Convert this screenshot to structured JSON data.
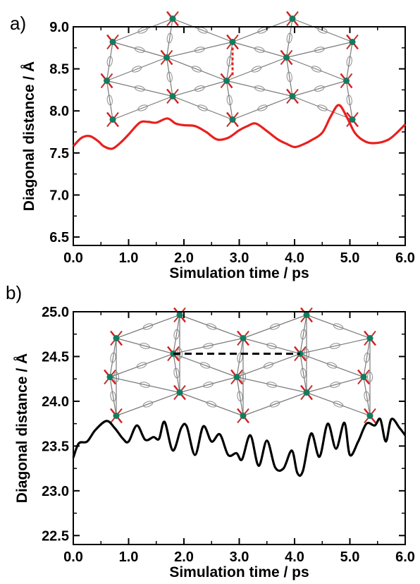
{
  "chart_data": [
    {
      "panel_label": "a)",
      "type": "line",
      "xlabel": "Simulation time / ps",
      "ylabel": "Diagonal distance / Å",
      "xlim": [
        0.0,
        6.0
      ],
      "ylim": [
        6.4,
        9.0
      ],
      "xticks": [
        "0.0",
        "1.0",
        "2.0",
        "3.0",
        "4.0",
        "5.0",
        "6.0"
      ],
      "yticks": [
        "6.5",
        "7.0",
        "7.5",
        "8.0",
        "8.5",
        "9.0"
      ],
      "series": [
        {
          "color": "#e8201e",
          "x": [
            0.0,
            0.15,
            0.3,
            0.45,
            0.55,
            0.7,
            0.85,
            1.0,
            1.2,
            1.35,
            1.5,
            1.7,
            1.85,
            2.0,
            2.2,
            2.4,
            2.6,
            2.8,
            3.0,
            3.15,
            3.3,
            3.5,
            3.7,
            3.85,
            4.0,
            4.15,
            4.3,
            4.5,
            4.65,
            4.8,
            4.95,
            5.1,
            5.3,
            5.5,
            5.7,
            5.85,
            6.0
          ],
          "y": [
            7.58,
            7.68,
            7.7,
            7.64,
            7.58,
            7.55,
            7.62,
            7.72,
            7.86,
            7.87,
            7.86,
            7.91,
            7.85,
            7.83,
            7.82,
            7.75,
            7.66,
            7.68,
            7.77,
            7.82,
            7.85,
            7.76,
            7.66,
            7.61,
            7.57,
            7.6,
            7.65,
            7.74,
            7.93,
            8.07,
            7.92,
            7.73,
            7.63,
            7.62,
            7.66,
            7.74,
            7.84
          ]
        }
      ],
      "inset_marker_color": "#e8201e"
    },
    {
      "panel_label": "b)",
      "type": "line",
      "xlabel": "Simulation time / ps",
      "ylabel": "Diagonal distance / Å",
      "xlim": [
        0.0,
        6.0
      ],
      "ylim": [
        22.4,
        25.0
      ],
      "xticks": [
        "0.0",
        "1.0",
        "2.0",
        "3.0",
        "4.0",
        "5.0",
        "6.0"
      ],
      "yticks": [
        "22.5",
        "23.0",
        "23.5",
        "24.0",
        "24.5",
        "25.0"
      ],
      "series": [
        {
          "color": "#000000",
          "x": [
            0.0,
            0.1,
            0.25,
            0.4,
            0.6,
            0.75,
            0.9,
            1.0,
            1.15,
            1.3,
            1.45,
            1.55,
            1.65,
            1.8,
            1.95,
            2.05,
            2.2,
            2.35,
            2.5,
            2.65,
            2.8,
            2.95,
            3.05,
            3.2,
            3.35,
            3.5,
            3.65,
            3.8,
            3.95,
            4.05,
            4.15,
            4.3,
            4.45,
            4.6,
            4.75,
            4.9,
            5.0,
            5.15,
            5.3,
            5.45,
            5.55,
            5.65,
            5.75,
            5.9,
            6.0
          ],
          "y": [
            23.37,
            23.53,
            23.55,
            23.68,
            23.78,
            23.7,
            23.58,
            23.55,
            23.73,
            23.57,
            23.6,
            23.58,
            23.77,
            23.45,
            23.7,
            23.72,
            23.4,
            23.72,
            23.55,
            23.63,
            23.4,
            23.42,
            23.35,
            23.62,
            23.28,
            23.56,
            23.26,
            23.25,
            23.45,
            23.2,
            23.22,
            23.64,
            23.38,
            23.75,
            23.47,
            23.76,
            23.4,
            23.55,
            23.75,
            23.73,
            23.8,
            23.55,
            23.8,
            23.7,
            23.62
          ]
        }
      ],
      "inset_marker_color": "#000000"
    }
  ]
}
